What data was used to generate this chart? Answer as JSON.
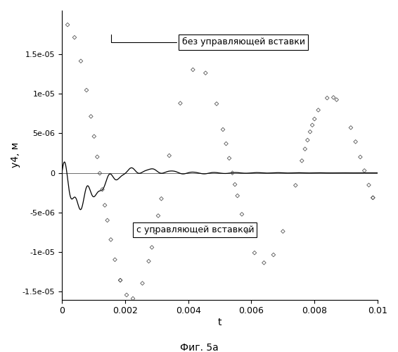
{
  "xlabel": "t",
  "ylabel": "y4, м",
  "xlim": [
    0,
    0.01
  ],
  "ylim": [
    -1.6e-05,
    2.05e-05
  ],
  "fig_caption": "Фиг. 5а",
  "annotation1": "без управляющей вставки",
  "annotation2": "с управляющей вставкой",
  "yticks": [
    -1.5e-05,
    -1e-05,
    -5e-06,
    0,
    5e-06,
    1e-05,
    1.5e-05
  ],
  "ytick_labels": [
    "-1.5e-05",
    "-1e-05",
    "-5e-06",
    "0",
    "5e-06",
    "1e-05",
    "1.5e-05"
  ],
  "xticks": [
    0,
    0.002,
    0.004,
    0.006,
    0.008,
    0.01
  ],
  "xtick_labels": [
    "0",
    "0.002",
    "0.004",
    "0.006",
    "0.008",
    "0.01"
  ],
  "background_color": "#ffffff",
  "scatter_color": "#555555",
  "line_color": "#000000",
  "scatter_amp": 1.9e-05,
  "scatter_freq": 238,
  "scatter_decay": 80,
  "scatter_phase": 1.35,
  "line_amp1": 1.4e-06,
  "line_freq1": 1500,
  "line_decay1": 600,
  "line_amp2": 1.6e-06,
  "line_freq2": 2800,
  "line_decay2": 1200,
  "line_dip_amp": 8.5e-06,
  "line_dip_decay": 1200,
  "line_dip_freq": 250
}
